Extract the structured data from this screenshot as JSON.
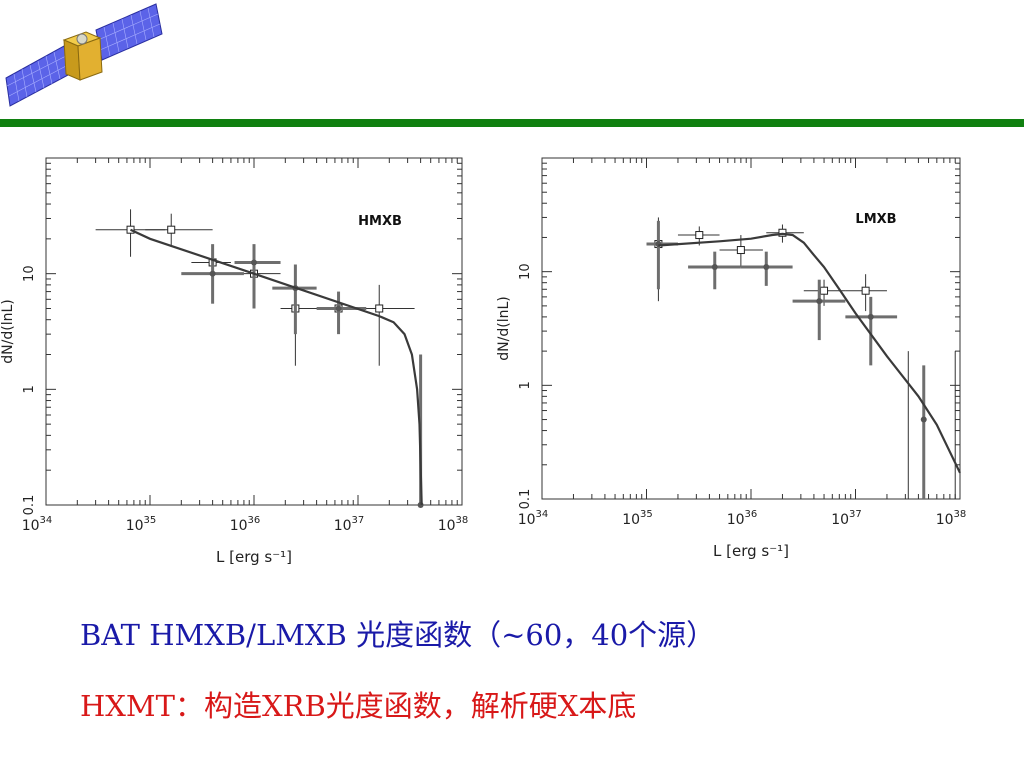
{
  "colors": {
    "header_rule": "#108010",
    "caption_1": "#1a1aa8",
    "caption_2": "#d81818",
    "model_curve": "#3a3a3a",
    "data_points": "#555555"
  },
  "icons": {
    "logo": "satellite-icon"
  },
  "captions": {
    "line1": "BAT HMXB/LMXB 光度函数（~60，40个源）",
    "line2": "HXMT：构造XRB光度函数，解析硬X本底"
  },
  "chart_data": [
    {
      "type": "scatter",
      "title": "",
      "panel_label": "HMXB",
      "xlabel": "L [erg s⁻¹]",
      "ylabel": "dN/d(lnL)",
      "x_scale": "log",
      "y_scale": "log",
      "xlim": [
        1e+34,
        1e+38
      ],
      "ylim": [
        0.1,
        100
      ],
      "x_ticks": [
        "34",
        "35",
        "36",
        "37",
        "38"
      ],
      "x_tick_base": "10",
      "y_ticks": [
        "0.1",
        "1",
        "10"
      ],
      "grid": false,
      "legend": "none",
      "series": [
        {
          "marker": "open-square",
          "style": "thin",
          "points": [
            {
              "x": 6.5e+34,
              "y": 24,
              "xerr": [
                3e+34,
                1.4e+35
              ],
              "yerr": [
                14,
                36
              ]
            },
            {
              "x": 1.6e+35,
              "y": 24,
              "xerr": [
                9e+34,
                4e+35
              ],
              "yerr": [
                17,
                33
              ]
            },
            {
              "x": 4e+35,
              "y": 12.5,
              "xerr": [
                2.5e+35,
                6e+35
              ],
              "yerr": [
                9,
                16
              ]
            },
            {
              "x": 1e+36,
              "y": 10,
              "xerr": [
                6e+35,
                1.8e+36
              ],
              "yerr": [
                7.5,
                13
              ]
            },
            {
              "x": 2.5e+36,
              "y": 5,
              "xerr": [
                1.8e+36,
                4.5e+36
              ],
              "yerr": [
                1.6,
                8
              ]
            },
            {
              "x": 6.5e+36,
              "y": 5,
              "xerr": [
                3.5e+36,
                1e+37
              ],
              "yerr": [
                3.5,
                6.5
              ]
            },
            {
              "x": 1.6e+37,
              "y": 5,
              "xerr": [
                1e+37,
                3.5e+37
              ],
              "yerr": [
                1.6,
                8
              ]
            }
          ]
        },
        {
          "marker": "filled-circle",
          "style": "thick",
          "points": [
            {
              "x": 4e+35,
              "y": 10,
              "xerr": [
                2e+35,
                8e+35
              ],
              "yerr": [
                5.5,
                18
              ]
            },
            {
              "x": 1e+36,
              "y": 12.5,
              "xerr": [
                6.5e+35,
                1.8e+36
              ],
              "yerr": [
                5,
                18
              ]
            },
            {
              "x": 2.5e+36,
              "y": 7.5,
              "xerr": [
                1.5e+36,
                4e+36
              ],
              "yerr": [
                3,
                12
              ]
            },
            {
              "x": 6.5e+36,
              "y": 5,
              "xerr": [
                4e+36,
                1.2e+37
              ],
              "yerr": [
                3,
                7
              ]
            },
            {
              "x": 4e+37,
              "y": 0.1,
              "xerr": [
                4e+37,
                4e+37
              ],
              "yerr": [
                0.1,
                2
              ]
            }
          ]
        }
      ],
      "model_curve": [
        [
          6.5e+34,
          24
        ],
        [
          1e+35,
          20
        ],
        [
          1e+36,
          10
        ],
        [
          1.6e+37,
          4.3
        ],
        [
          2.2e+37,
          3.8
        ],
        [
          2.8e+37,
          3.0
        ],
        [
          3.3e+37,
          2.0
        ],
        [
          3.7e+37,
          1.0
        ],
        [
          3.9e+37,
          0.5
        ],
        [
          4.1e+37,
          0.1
        ]
      ]
    },
    {
      "type": "scatter",
      "title": "",
      "panel_label": "LMXB",
      "xlabel": "L [erg s⁻¹]",
      "ylabel": "dN/d(lnL)",
      "x_scale": "log",
      "y_scale": "log",
      "xlim": [
        1e+34,
        1e+38
      ],
      "ylim": [
        0.1,
        100
      ],
      "x_ticks": [
        "34",
        "35",
        "36",
        "37",
        "38"
      ],
      "x_tick_base": "10",
      "y_ticks": [
        "0.1",
        "1",
        "10"
      ],
      "grid": false,
      "legend": "none",
      "series": [
        {
          "marker": "open-square",
          "style": "thin",
          "points": [
            {
              "x": 1.3e+35,
              "y": 17.5,
              "xerr": [
                1e+35,
                2e+35
              ],
              "yerr": [
                5.5,
                30
              ]
            },
            {
              "x": 3.2e+35,
              "y": 21,
              "xerr": [
                2e+35,
                5e+35
              ],
              "yerr": [
                17,
                25
              ]
            },
            {
              "x": 8e+35,
              "y": 15.5,
              "xerr": [
                5e+35,
                1.3e+36
              ],
              "yerr": [
                11,
                21
              ]
            },
            {
              "x": 2e+36,
              "y": 22,
              "xerr": [
                1.4e+36,
                3.2e+36
              ],
              "yerr": [
                18,
                26
              ]
            },
            {
              "x": 5e+36,
              "y": 6.8,
              "xerr": [
                3.2e+36,
                8e+36
              ],
              "yerr": [
                5,
                8.5
              ]
            },
            {
              "x": 1.25e+37,
              "y": 6.8,
              "xerr": [
                8e+36,
                2e+37
              ],
              "yerr": [
                4.5,
                9.5
              ]
            }
          ]
        },
        {
          "marker": "filled-circle",
          "style": "thick",
          "points": [
            {
              "x": 1.3e+35,
              "y": 17.5,
              "xerr": [
                1e+35,
                2e+35
              ],
              "yerr": [
                7,
                28
              ]
            },
            {
              "x": 4.5e+35,
              "y": 11,
              "xerr": [
                2.5e+35,
                8e+35
              ],
              "yerr": [
                7,
                15
              ]
            },
            {
              "x": 1.4e+36,
              "y": 11,
              "xerr": [
                8e+35,
                2.5e+36
              ],
              "yerr": [
                7.5,
                15
              ]
            },
            {
              "x": 4.5e+36,
              "y": 5.5,
              "xerr": [
                2.5e+36,
                8e+36
              ],
              "yerr": [
                2.5,
                8.5
              ]
            },
            {
              "x": 1.4e+37,
              "y": 4,
              "xerr": [
                8e+36,
                2.5e+37
              ],
              "yerr": [
                1.5,
                6
              ]
            },
            {
              "x": 4.5e+37,
              "y": 0.5,
              "xerr": [
                4.5e+37,
                4.5e+37
              ],
              "yerr": [
                0.1,
                1.5
              ]
            }
          ]
        },
        {
          "marker": "none",
          "style": "thin",
          "points": [
            {
              "x": 3.2e+37,
              "y": 0.5,
              "xerr": [
                3.2e+37,
                3.2e+37
              ],
              "yerr": [
                0.1,
                2
              ]
            },
            {
              "x": 9e+37,
              "y": 0.5,
              "xerr": [
                9e+37,
                9e+37
              ],
              "yerr": [
                0.1,
                2
              ]
            }
          ]
        }
      ],
      "model_curve": [
        [
          1.3e+35,
          17
        ],
        [
          5e+35,
          18.5
        ],
        [
          1e+36,
          19.5
        ],
        [
          1.6e+36,
          21
        ],
        [
          2e+36,
          21.5
        ],
        [
          2.5e+36,
          21
        ],
        [
          3.2e+36,
          18
        ],
        [
          4e+36,
          14
        ],
        [
          5e+36,
          11
        ],
        [
          7e+36,
          7
        ],
        [
          1e+37,
          4.3
        ],
        [
          2e+37,
          1.8
        ],
        [
          4e+37,
          0.8
        ],
        [
          6e+37,
          0.45
        ],
        [
          1e+38,
          0.17
        ]
      ]
    }
  ]
}
